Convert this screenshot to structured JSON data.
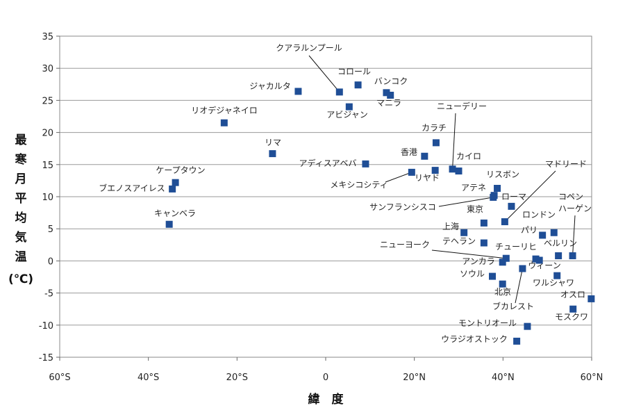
{
  "chart_data": {
    "type": "scatter",
    "xlabel": "緯　度",
    "ylabel": "最寒月平均気温(℃)",
    "xlim": [
      -60,
      60
    ],
    "ylim": [
      -15,
      35
    ],
    "x_ticks": [
      {
        "v": -60,
        "label": "60°S"
      },
      {
        "v": -40,
        "label": "40°S"
      },
      {
        "v": -20,
        "label": "20°S"
      },
      {
        "v": 0,
        "label": "0"
      },
      {
        "v": 20,
        "label": "20°N"
      },
      {
        "v": 40,
        "label": "40°N"
      },
      {
        "v": 60,
        "label": "60°N"
      }
    ],
    "y_ticks": [
      -15,
      -10,
      -5,
      0,
      5,
      10,
      15,
      20,
      25,
      30,
      35
    ],
    "grid": "horizontal",
    "marker_color": "#1f4e96",
    "points": [
      {
        "name": "クアラルンプール",
        "x": 3.1,
        "y": 26.3
      },
      {
        "name": "コロール",
        "x": 7.3,
        "y": 27.4
      },
      {
        "name": "ジャカルタ",
        "x": -6.2,
        "y": 26.4
      },
      {
        "name": "バンコク",
        "x": 13.7,
        "y": 26.2
      },
      {
        "name": "マニラ",
        "x": 14.6,
        "y": 25.8
      },
      {
        "name": "アビジャン",
        "x": 5.3,
        "y": 24.0
      },
      {
        "name": "リオデジャネイロ",
        "x": -22.9,
        "y": 21.5
      },
      {
        "name": "ニューデリー",
        "x": 28.6,
        "y": 14.3
      },
      {
        "name": "カラチ",
        "x": 24.9,
        "y": 18.4
      },
      {
        "name": "香港",
        "x": 22.3,
        "y": 16.3
      },
      {
        "name": "リマ",
        "x": -12.0,
        "y": 16.7
      },
      {
        "name": "カイロ",
        "x": 30.0,
        "y": 14.0
      },
      {
        "name": "アディスアベバ",
        "x": 9.0,
        "y": 15.1
      },
      {
        "name": "リヤド",
        "x": 24.7,
        "y": 14.1
      },
      {
        "name": "メキシコシティ",
        "x": 19.4,
        "y": 13.8
      },
      {
        "name": "ケープタウン",
        "x": -33.9,
        "y": 12.2
      },
      {
        "name": "ブエノスアイレス",
        "x": -34.6,
        "y": 11.2
      },
      {
        "name": "リスボン",
        "x": 38.7,
        "y": 11.3
      },
      {
        "name": "アテネ",
        "x": 38.0,
        "y": 10.2
      },
      {
        "name": "ローマ",
        "x": 41.9,
        "y": 8.5
      },
      {
        "name": "サンフランシスコ",
        "x": 37.8,
        "y": 9.9
      },
      {
        "name": "マドリード",
        "x": 40.4,
        "y": 6.1
      },
      {
        "name": "キャンベラ",
        "x": -35.3,
        "y": 5.7
      },
      {
        "name": "東京",
        "x": 35.7,
        "y": 5.9
      },
      {
        "name": "コペンハーゲン",
        "x": 55.7,
        "y": 0.8
      },
      {
        "name": "ロンドン",
        "x": 51.5,
        "y": 4.4
      },
      {
        "name": "上海",
        "x": 31.2,
        "y": 4.4
      },
      {
        "name": "パリ",
        "x": 48.9,
        "y": 4.0
      },
      {
        "name": "テヘラン",
        "x": 35.7,
        "y": 2.8
      },
      {
        "name": "ベルリン",
        "x": 52.5,
        "y": 0.8
      },
      {
        "name": "ニューヨーク",
        "x": 40.7,
        "y": 0.4
      },
      {
        "name": "チューリヒ",
        "x": 47.4,
        "y": 0.3
      },
      {
        "name": "アンカラ",
        "x": 39.9,
        "y": -0.2
      },
      {
        "name": "ウィーン",
        "x": 48.2,
        "y": 0.1
      },
      {
        "name": "ブカレスト",
        "x": 44.4,
        "y": -1.2
      },
      {
        "name": "ソウル",
        "x": 37.6,
        "y": -2.4
      },
      {
        "name": "ワルシャワ",
        "x": 52.2,
        "y": -2.3
      },
      {
        "name": "北京",
        "x": 39.9,
        "y": -3.6
      },
      {
        "name": "オスロ",
        "x": 59.9,
        "y": -5.9
      },
      {
        "name": "モスクワ",
        "x": 55.8,
        "y": -7.5
      },
      {
        "name": "モントリオール",
        "x": 45.5,
        "y": -10.2
      },
      {
        "name": "ウラジオストック",
        "x": 43.1,
        "y": -12.5
      }
    ]
  }
}
